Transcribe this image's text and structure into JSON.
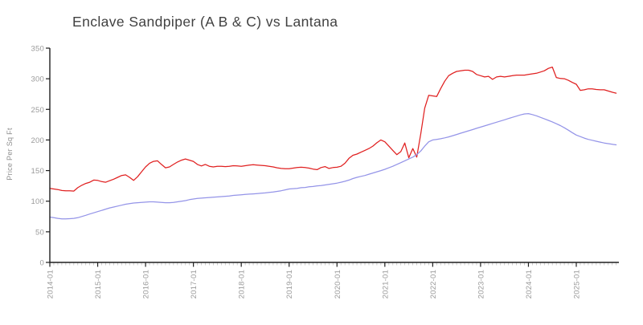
{
  "title": "Enclave Sandpiper (A B & C) vs Lantana",
  "chart_data": {
    "type": "line",
    "title": "Enclave Sandpiper (A B & C) vs Lantana",
    "xlabel": "",
    "ylabel": "Price Per Sq Ft",
    "ylim": [
      0,
      350
    ],
    "y_ticks": [
      0,
      50,
      100,
      150,
      200,
      250,
      300,
      350
    ],
    "x_tick_labels": [
      "2014-01",
      "2015-01",
      "2016-01",
      "2017-01",
      "2018-01",
      "2019-01",
      "2020-01",
      "2021-01",
      "2022-01",
      "2023-01",
      "2024-01",
      "2025-01"
    ],
    "x_minor_ticks": "monthly",
    "x_start": "2014-01",
    "x_end": "2025-11",
    "grid": false,
    "legend_position": "none",
    "axis_color": "#1f1f1f",
    "minor_tick_color": "#c4c4c4",
    "tick_label_color": "#9a9a9a",
    "series": [
      {
        "name": "Enclave Sandpiper (A B & C)",
        "color": "#e02020",
        "values": [
          121,
          120,
          119,
          117.5,
          117,
          117,
          116.5,
          122,
          126,
          129,
          131,
          134.5,
          134,
          132,
          131,
          133.5,
          136,
          139,
          142,
          143,
          139,
          134,
          140,
          148,
          156,
          162,
          165,
          166,
          160,
          154.5,
          156,
          160,
          164,
          167,
          169,
          167,
          165,
          160,
          157.5,
          160,
          157,
          156,
          157,
          157,
          156.5,
          157,
          158,
          157.5,
          157,
          158,
          159,
          159.5,
          159,
          158.5,
          158,
          157,
          156,
          154.5,
          153.5,
          153,
          153,
          154,
          155,
          155.5,
          155,
          154,
          152.5,
          151.5,
          155,
          156.5,
          153.5,
          155,
          155.5,
          157,
          162,
          170,
          175,
          177,
          180,
          183,
          186,
          190,
          195.5,
          200,
          197,
          190,
          183,
          176,
          181,
          195,
          171,
          186,
          172,
          210,
          252,
          273,
          272,
          271,
          284,
          296,
          305,
          309,
          312,
          313,
          314,
          314,
          312,
          307,
          305,
          303,
          304,
          299,
          303,
          304,
          303,
          304,
          305,
          306,
          306,
          306,
          307,
          308,
          309,
          311,
          313,
          317,
          319,
          302,
          300.5,
          300,
          297.5,
          294,
          291,
          281,
          282,
          283.5,
          283.5,
          282.5,
          282,
          282,
          280,
          278,
          276.5
        ]
      },
      {
        "name": "Lantana",
        "color": "#9494e8",
        "values": [
          74,
          73,
          72,
          71,
          71,
          71.5,
          72,
          73,
          75,
          77,
          79,
          81,
          83,
          85,
          87,
          89,
          90.5,
          92,
          93.5,
          95,
          96,
          97,
          97.5,
          98,
          98.5,
          99,
          99,
          98.5,
          98,
          97.5,
          97.5,
          98,
          99,
          100,
          101,
          102.5,
          103.5,
          104.5,
          105,
          105.5,
          106,
          106.5,
          107,
          107.5,
          108,
          108.5,
          109.5,
          110,
          110.5,
          111,
          111.5,
          112,
          112.5,
          113,
          113.5,
          114.5,
          115,
          116,
          117,
          118.5,
          120,
          120.5,
          121,
          122,
          122.5,
          123.5,
          124,
          125,
          125.5,
          126.5,
          127.5,
          128.5,
          129.5,
          131,
          132.5,
          134.5,
          137,
          139,
          140.5,
          142,
          144,
          146,
          148,
          150,
          152,
          154.5,
          157,
          160,
          163,
          166,
          169,
          172,
          176,
          182,
          190,
          197,
          200,
          201,
          202,
          203.5,
          205,
          207,
          209,
          211,
          213,
          215,
          217,
          219,
          221,
          223,
          225,
          227,
          229,
          231,
          233,
          235,
          237,
          239,
          241,
          242.5,
          243,
          241.5,
          239.5,
          237,
          234.5,
          232,
          229.5,
          226.5,
          223.5,
          220,
          216,
          212,
          208,
          205.5,
          203,
          201,
          199.5,
          198,
          196.5,
          195,
          194,
          193,
          192
        ]
      }
    ]
  }
}
